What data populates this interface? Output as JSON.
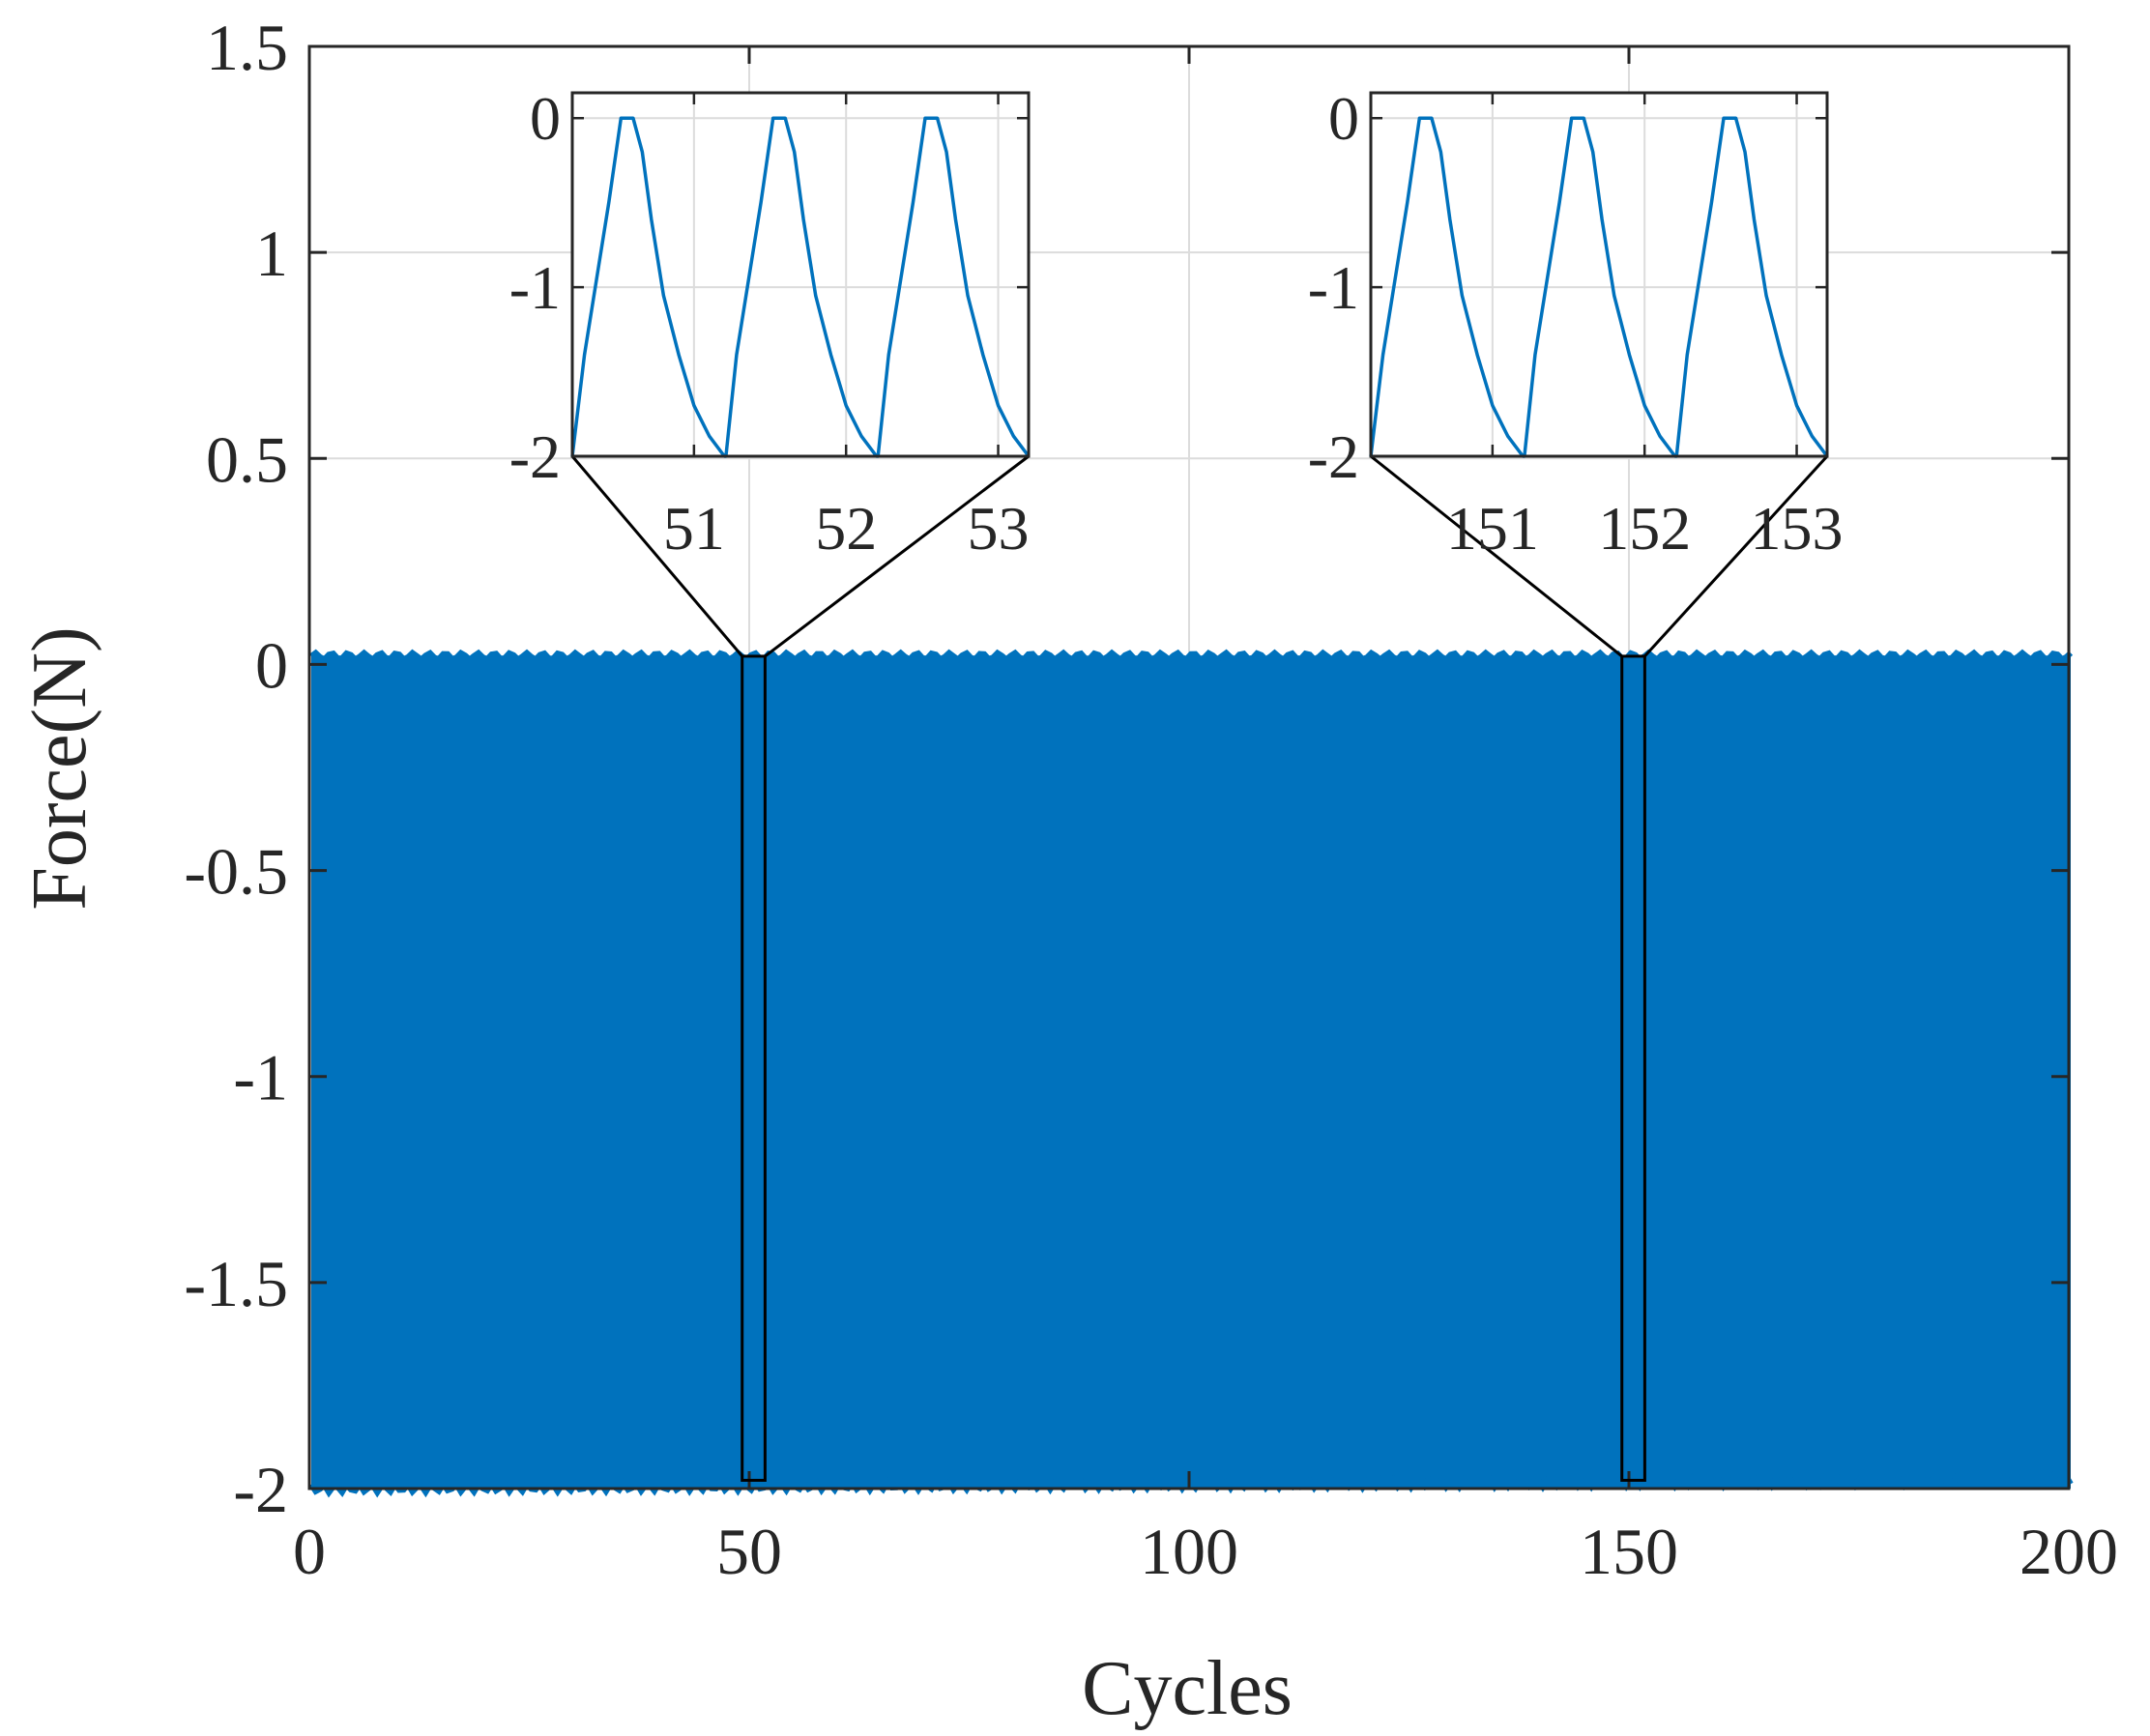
{
  "chart_data": [
    {
      "type": "line",
      "title": "",
      "xlabel": "Cycles",
      "ylabel": "Force(N)",
      "xlim": [
        0,
        200
      ],
      "ylim": [
        -2,
        1.5
      ],
      "xticks": [
        0,
        50,
        100,
        150,
        200
      ],
      "xtick_labels": [
        "0",
        "50",
        "100",
        "150",
        "200"
      ],
      "yticks": [
        -2,
        -1.5,
        -1,
        -0.5,
        0,
        0.5,
        1,
        1.5
      ],
      "ytick_labels": [
        "-2",
        "-1.5",
        "-1",
        "-0.5",
        "0",
        "0.5",
        "1",
        "1.5"
      ],
      "grid": true,
      "series": [
        {
          "color": "#0072BD",
          "cycles_range": [
            0,
            200
          ],
          "min": -2.0,
          "max": 0.02,
          "note_fill": "dense oscillation between about -2 and 0 N over 200 cycles"
        }
      ],
      "zoom_boxes": [
        {
          "x_range": [
            49.2,
            51.8
          ],
          "y_range": [
            -1.98,
            0.02
          ]
        },
        {
          "x_range": [
            149.2,
            151.8
          ],
          "y_range": [
            -1.98,
            0.02
          ]
        }
      ]
    },
    {
      "type": "line",
      "title": "",
      "xlim": [
        50.2,
        53.2
      ],
      "ylim": [
        -2,
        0.15
      ],
      "xticks": [
        51,
        52,
        53
      ],
      "xtick_labels": [
        "51",
        "52",
        "53"
      ],
      "yticks": [
        -2,
        -1,
        0
      ],
      "ytick_labels": [
        "-2",
        "-1",
        "0"
      ],
      "grid": true,
      "series": [
        {
          "color": "#0072BD",
          "x": [
            50.2,
            50.28,
            50.36,
            50.44,
            50.52,
            50.56,
            50.6,
            50.66,
            50.72,
            50.8,
            50.9,
            51.0,
            51.1,
            51.2,
            51.21,
            51.28,
            51.36,
            51.44,
            51.52,
            51.56,
            51.6,
            51.66,
            51.72,
            51.8,
            51.9,
            52.0,
            52.1,
            52.2,
            52.21,
            52.28,
            52.36,
            52.44,
            52.52,
            52.56,
            52.6,
            52.66,
            52.72,
            52.8,
            52.9,
            53.0,
            53.1,
            53.2
          ],
          "y": [
            -2.0,
            -1.4,
            -0.95,
            -0.5,
            0.0,
            0.0,
            0.0,
            -0.2,
            -0.6,
            -1.05,
            -1.4,
            -1.7,
            -1.88,
            -2.0,
            -2.0,
            -1.4,
            -0.95,
            -0.5,
            0.0,
            0.0,
            0.0,
            -0.2,
            -0.6,
            -1.05,
            -1.4,
            -1.7,
            -1.88,
            -2.0,
            -2.0,
            -1.4,
            -0.95,
            -0.5,
            0.0,
            0.0,
            0.0,
            -0.2,
            -0.6,
            -1.05,
            -1.4,
            -1.7,
            -1.88,
            -2.0
          ]
        }
      ]
    },
    {
      "type": "line",
      "title": "",
      "xlim": [
        150.2,
        153.2
      ],
      "ylim": [
        -2,
        0.15
      ],
      "xticks": [
        151,
        152,
        153
      ],
      "xtick_labels": [
        "151",
        "152",
        "153"
      ],
      "yticks": [
        -2,
        -1,
        0
      ],
      "ytick_labels": [
        "-2",
        "-1",
        "0"
      ],
      "grid": true,
      "series": [
        {
          "color": "#0072BD",
          "x": [
            150.2,
            150.28,
            150.36,
            150.44,
            150.52,
            150.56,
            150.6,
            150.66,
            150.72,
            150.8,
            150.9,
            151.0,
            151.1,
            151.2,
            151.21,
            151.28,
            151.36,
            151.44,
            151.52,
            151.56,
            151.6,
            151.66,
            151.72,
            151.8,
            151.9,
            152.0,
            152.1,
            152.2,
            152.21,
            152.28,
            152.36,
            152.44,
            152.52,
            152.56,
            152.6,
            152.66,
            152.72,
            152.8,
            152.9,
            153.0,
            153.1,
            153.2
          ],
          "y": [
            -2.0,
            -1.4,
            -0.95,
            -0.5,
            0.0,
            0.0,
            0.0,
            -0.2,
            -0.6,
            -1.05,
            -1.4,
            -1.7,
            -1.88,
            -2.0,
            -2.0,
            -1.4,
            -0.95,
            -0.5,
            0.0,
            0.0,
            0.0,
            -0.2,
            -0.6,
            -1.05,
            -1.4,
            -1.7,
            -1.88,
            -2.0,
            -2.0,
            -1.4,
            -0.95,
            -0.5,
            0.0,
            0.0,
            0.0,
            -0.2,
            -0.6,
            -1.05,
            -1.4,
            -1.7,
            -1.88,
            -2.0
          ]
        }
      ]
    }
  ]
}
